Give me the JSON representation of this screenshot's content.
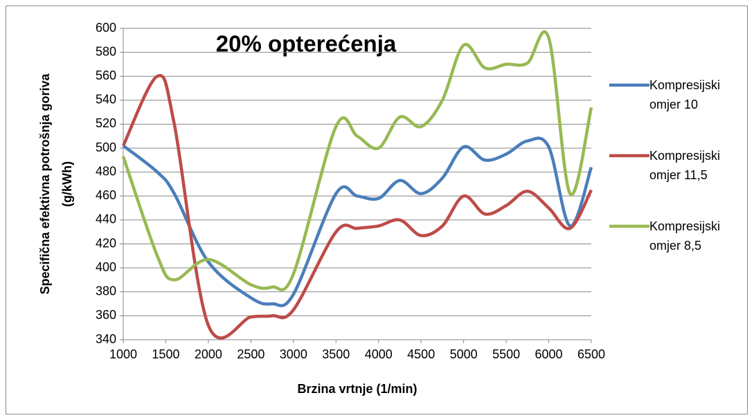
{
  "chart_data": {
    "type": "line",
    "title": "20% opterećenja",
    "xlabel": "Brzina vrtnje (1/min)",
    "ylabel": [
      "Specifična efektivna potrošnja goriva",
      "(g/kWh)"
    ],
    "x": [
      1000,
      1400,
      1600,
      2000,
      2500,
      2750,
      3000,
      3500,
      3750,
      4000,
      4250,
      4500,
      4750,
      5000,
      5250,
      5500,
      5750,
      6000,
      6250,
      6500
    ],
    "series": [
      {
        "name": "Kompresijski omjer 10",
        "color": "#4a7ebb",
        "values": [
          502,
          480,
          462,
          405,
          375,
          370,
          378,
          462,
          460,
          458,
          473,
          462,
          475,
          501,
          490,
          495,
          506,
          501,
          435,
          484
        ]
      },
      {
        "name": "Kompresijski omjer 11,5",
        "color": "#be4b48",
        "values": [
          502,
          560,
          520,
          352,
          359,
          360,
          365,
          430,
          433,
          435,
          440,
          427,
          435,
          460,
          445,
          452,
          464,
          450,
          433,
          465
        ]
      },
      {
        "name": "Kompresijski omjer 8,5",
        "color": "#98b954",
        "values": [
          493,
          410,
          390,
          407,
          386,
          384,
          395,
          518,
          510,
          500,
          526,
          518,
          540,
          586,
          567,
          570,
          571,
          592,
          462,
          534
        ]
      }
    ],
    "xlim": [
      1000,
      6500
    ],
    "xticks": [
      1000,
      1500,
      2000,
      2500,
      3000,
      3500,
      4000,
      4500,
      5000,
      5500,
      6000,
      6500
    ],
    "ylim": [
      340,
      600
    ],
    "yticks": [
      340,
      360,
      380,
      400,
      420,
      440,
      460,
      480,
      500,
      520,
      540,
      560,
      580,
      600
    ],
    "grid": true,
    "legend": "right"
  }
}
